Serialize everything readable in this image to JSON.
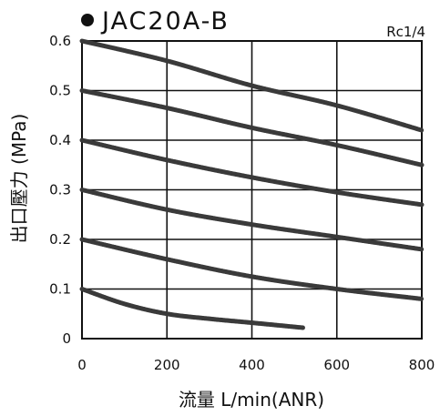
{
  "chart_data": {
    "type": "line",
    "title": "JAC20A-B",
    "annotation": "Rc1/4",
    "xlabel": "流量 L/min(ANR)",
    "ylabel": "出口壓力 (MPa)",
    "xlim": [
      0,
      800
    ],
    "ylim": [
      0,
      0.6
    ],
    "x_ticks": [
      "0",
      "200",
      "400",
      "600",
      "800"
    ],
    "y_ticks": [
      "0",
      "0.1",
      "0.2",
      "0.3",
      "0.4",
      "0.5",
      "0.6"
    ],
    "grid": true,
    "series": [
      {
        "x": [
          0,
          200,
          400,
          600,
          800
        ],
        "values": [
          0.6,
          0.56,
          0.51,
          0.47,
          0.42
        ]
      },
      {
        "x": [
          0,
          200,
          400,
          600,
          800
        ],
        "values": [
          0.5,
          0.465,
          0.425,
          0.39,
          0.35
        ]
      },
      {
        "x": [
          0,
          200,
          400,
          600,
          800
        ],
        "values": [
          0.4,
          0.36,
          0.325,
          0.295,
          0.27
        ]
      },
      {
        "x": [
          0,
          200,
          400,
          600,
          800
        ],
        "values": [
          0.3,
          0.26,
          0.23,
          0.205,
          0.18
        ]
      },
      {
        "x": [
          0,
          200,
          400,
          600,
          800
        ],
        "values": [
          0.2,
          0.16,
          0.125,
          0.1,
          0.08
        ]
      },
      {
        "x": [
          0,
          100,
          200,
          300,
          400,
          520
        ],
        "values": [
          0.1,
          0.07,
          0.05,
          0.04,
          0.032,
          0.022
        ]
      }
    ]
  }
}
